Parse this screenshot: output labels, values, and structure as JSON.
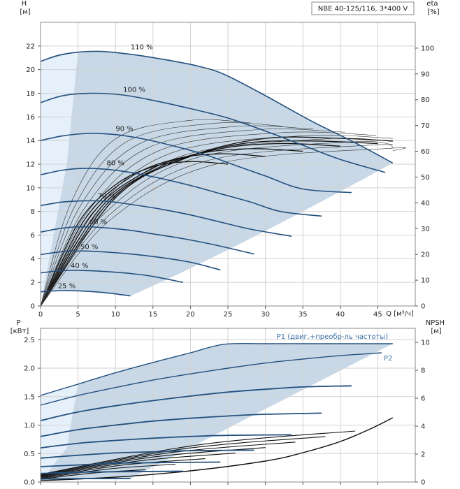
{
  "chart_data": [
    {
      "type": "line",
      "title": "NBE 40-125/116, 3*400 V",
      "xlabel": "Q [м³/ч]",
      "ylabel": "H\n[м]",
      "y2label": "eta\n[%]",
      "xlim": [
        0,
        50
      ],
      "ylim": [
        0,
        24
      ],
      "y2lim": [
        0,
        110
      ],
      "xticks": [
        0,
        5,
        10,
        15,
        20,
        25,
        30,
        35,
        40,
        45
      ],
      "yticks": [
        0,
        2,
        4,
        6,
        8,
        10,
        12,
        14,
        16,
        18,
        20,
        22
      ],
      "y2ticks": [
        0,
        10,
        20,
        30,
        40,
        50,
        60,
        70,
        80,
        90,
        100
      ],
      "grid": true,
      "region_color": "#c8d8e6",
      "region_light_color": "#e6f0fa",
      "series": [
        {
          "name": "110 %",
          "color": "#23507f",
          "x": [
            0,
            3,
            7.5,
            12,
            17,
            21,
            24.5,
            30,
            36,
            42,
            47
          ],
          "y": [
            20.7,
            21.3,
            21.55,
            21.3,
            20.8,
            20.3,
            19.6,
            17.8,
            15.7,
            13.8,
            12.1
          ]
        },
        {
          "name": "100 %",
          "color": "#23507f",
          "x": [
            0,
            3,
            7,
            11,
            15,
            20,
            25,
            30,
            35,
            40,
            46
          ],
          "y": [
            17.2,
            17.8,
            18.0,
            17.85,
            17.4,
            16.7,
            15.9,
            14.8,
            13.6,
            12.4,
            11.3
          ]
        },
        {
          "name": "90 %",
          "color": "#23507f",
          "x": [
            0,
            3,
            6.5,
            10,
            14,
            18,
            22,
            26,
            30,
            35,
            41.5
          ],
          "y": [
            14.0,
            14.4,
            14.6,
            14.5,
            14.1,
            13.5,
            12.8,
            11.9,
            11.0,
            9.9,
            9.6
          ]
        },
        {
          "name": "80 %",
          "color": "#23507f",
          "x": [
            0,
            3,
            6,
            9,
            12,
            16,
            20,
            24,
            28,
            32,
            37.5
          ],
          "y": [
            11.1,
            11.5,
            11.65,
            11.55,
            11.3,
            10.8,
            10.2,
            9.5,
            8.8,
            8.0,
            7.6
          ]
        },
        {
          "name": "70 %",
          "color": "#23507f",
          "x": [
            0,
            3,
            6,
            9,
            12,
            16,
            20,
            24,
            28,
            33.5
          ],
          "y": [
            8.5,
            8.8,
            8.9,
            8.85,
            8.6,
            8.2,
            7.7,
            7.1,
            6.5,
            5.9
          ]
        },
        {
          "name": "60 %",
          "color": "#23507f",
          "x": [
            0,
            3,
            6,
            9,
            12,
            15,
            19,
            23,
            28.5
          ],
          "y": [
            6.25,
            6.6,
            6.7,
            6.6,
            6.4,
            6.1,
            5.7,
            5.2,
            4.4
          ]
        },
        {
          "name": "50 %",
          "color": "#23507f",
          "x": [
            0,
            3,
            6,
            9,
            12,
            16,
            20,
            24
          ],
          "y": [
            4.35,
            4.6,
            4.65,
            4.55,
            4.4,
            4.1,
            3.7,
            3.05
          ]
        },
        {
          "name": "40 %",
          "color": "#23507f",
          "x": [
            0,
            3,
            6,
            9,
            12,
            15,
            19
          ],
          "y": [
            2.8,
            3.0,
            3.0,
            2.9,
            2.75,
            2.5,
            2.0
          ]
        },
        {
          "name": "25 %",
          "color": "#23507f",
          "x": [
            0,
            3,
            6,
            9,
            12
          ],
          "y": [
            1.2,
            1.3,
            1.25,
            1.1,
            0.85
          ]
        }
      ],
      "eta_series": [
        {
          "x": [
            0,
            10,
            20,
            30,
            40,
            47
          ],
          "y": [
            0,
            42,
            58,
            65,
            65,
            64
          ]
        },
        {
          "x": [
            0,
            9,
            18,
            27,
            36,
            45
          ],
          "y": [
            0,
            40,
            56,
            63,
            64,
            63
          ]
        },
        {
          "x": [
            0,
            8,
            16,
            24,
            32,
            40
          ],
          "y": [
            0,
            38,
            54,
            61,
            63,
            62
          ]
        },
        {
          "x": [
            0,
            7,
            14,
            21,
            28,
            35
          ],
          "y": [
            0,
            36,
            52,
            59,
            61,
            60
          ]
        },
        {
          "x": [
            0,
            6,
            12,
            18,
            24,
            30
          ],
          "y": [
            0,
            34,
            50,
            57,
            59,
            58
          ]
        },
        {
          "x": [
            0,
            5,
            10,
            15,
            20,
            25
          ],
          "y": [
            0,
            32,
            47,
            54,
            56,
            55
          ]
        }
      ],
      "annotations": [
        {
          "text": "110 %",
          "x": 13.5,
          "y": 21.6
        },
        {
          "text": "100 %",
          "x": 12.5,
          "y": 18.0
        },
        {
          "text": "90 %",
          "x": 11.2,
          "y": 14.7
        },
        {
          "text": "80 %",
          "x": 10.0,
          "y": 11.8
        },
        {
          "text": "70 %",
          "x": 8.8,
          "y": 9.0
        },
        {
          "text": "60 %",
          "x": 7.7,
          "y": 6.8
        },
        {
          "text": "50 %",
          "x": 6.5,
          "y": 4.7
        },
        {
          "text": "40 %",
          "x": 5.2,
          "y": 3.1
        },
        {
          "text": "25 %",
          "x": 3.5,
          "y": 1.4
        }
      ]
    },
    {
      "type": "line",
      "ylabel": "P\n[кВт]",
      "y2label": "NPSH\n[м]",
      "xlim": [
        0,
        50
      ],
      "ylim": [
        0,
        2.7
      ],
      "y2lim": [
        0,
        11
      ],
      "yticks": [
        0.0,
        0.5,
        1.0,
        1.5,
        2.0,
        2.5
      ],
      "yticklabels": [
        "0.0",
        "0.5",
        "1.0",
        "1.5",
        "2.0",
        "2.5"
      ],
      "y2ticks": [
        0,
        2,
        4,
        6,
        8,
        10
      ],
      "grid": true,
      "series": [
        {
          "name": "P1 (двиг.+преобр-ль частоты)",
          "color": "#23507f",
          "x": [
            0,
            5,
            10,
            15,
            20,
            24.5,
            30,
            35,
            40,
            47
          ],
          "y": [
            1.52,
            1.72,
            1.92,
            2.1,
            2.27,
            2.42,
            2.43,
            2.43,
            2.43,
            2.43
          ]
        },
        {
          "name": "P2",
          "color": "#23507f",
          "x": [
            0,
            5,
            10,
            15,
            20,
            25,
            30,
            35,
            40,
            45.5
          ],
          "y": [
            1.35,
            1.52,
            1.66,
            1.79,
            1.9,
            2.0,
            2.09,
            2.16,
            2.22,
            2.27
          ]
        },
        {
          "color": "#23507f",
          "x": [
            0,
            5,
            10,
            15,
            20,
            25,
            30,
            35,
            41.5
          ],
          "y": [
            1.08,
            1.23,
            1.34,
            1.43,
            1.51,
            1.58,
            1.63,
            1.67,
            1.69
          ]
        },
        {
          "color": "#23507f",
          "x": [
            0,
            5,
            10,
            15,
            20,
            25,
            30,
            37.5
          ],
          "y": [
            0.8,
            0.92,
            1.0,
            1.07,
            1.12,
            1.16,
            1.19,
            1.21
          ]
        },
        {
          "color": "#23507f",
          "x": [
            0,
            5,
            10,
            15,
            20,
            25,
            33.5
          ],
          "y": [
            0.6,
            0.68,
            0.73,
            0.77,
            0.8,
            0.82,
            0.83
          ]
        },
        {
          "color": "#23507f",
          "x": [
            0,
            5,
            10,
            15,
            20,
            28.5
          ],
          "y": [
            0.42,
            0.47,
            0.51,
            0.53,
            0.55,
            0.56
          ]
        },
        {
          "color": "#23507f",
          "x": [
            0,
            5,
            10,
            15,
            24
          ],
          "y": [
            0.27,
            0.3,
            0.33,
            0.34,
            0.35
          ]
        },
        {
          "color": "#23507f",
          "x": [
            0,
            5,
            10,
            19
          ],
          "y": [
            0.15,
            0.17,
            0.18,
            0.19
          ]
        },
        {
          "color": "#23507f",
          "x": [
            0,
            4,
            8,
            12
          ],
          "y": [
            0.05,
            0.06,
            0.06,
            0.06
          ]
        }
      ],
      "npsh_series": [
        {
          "name": "NPSH",
          "x": [
            0,
            10,
            20,
            30,
            35,
            40,
            44,
            47
          ],
          "y": [
            0.1,
            0.35,
            0.8,
            1.5,
            2.1,
            2.9,
            3.8,
            4.6
          ]
        }
      ],
      "annotations": [
        {
          "text": "P1 (двиг.+преобр-ль частоты)",
          "x": 31.5,
          "y": 2.48
        },
        {
          "text": "P2",
          "x": 45.8,
          "y": 2.1
        }
      ]
    }
  ]
}
